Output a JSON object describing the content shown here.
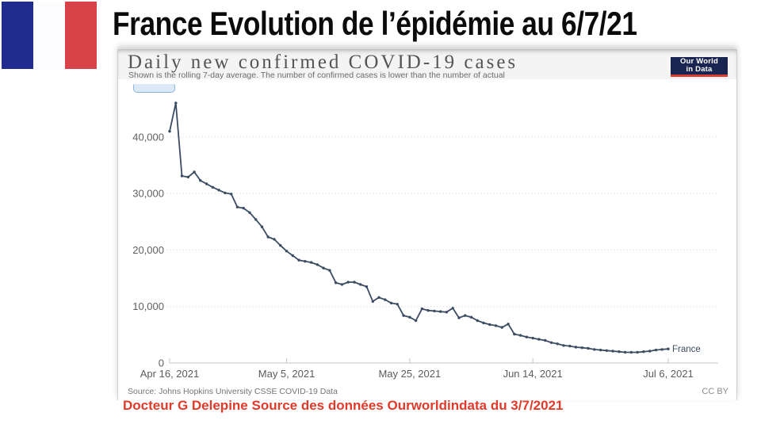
{
  "slide": {
    "title": "France Evolution de l’épidémie au 6/7/21",
    "caption": "Docteur G Delepine  Source des données Ourworldindata du 3/7/2021",
    "flag_colors": {
      "blue": "#202d8e",
      "white": "#fdfdff",
      "red": "#d8434a"
    }
  },
  "chart_embed": {
    "header": {
      "title": "Daily new confirmed COVID-19 cases",
      "subtitle": "Shown is the rolling 7-day average. The number of confirmed cases is lower than the number of actual"
    },
    "logo": {
      "line1": "Our World",
      "line2": "in Data",
      "bg": "#1a2451",
      "accent": "#d93d32"
    },
    "footer": {
      "source": "Source: Johns Hopkins University CSSE COVID-19 Data",
      "license": "CC BY"
    }
  },
  "chart_data": {
    "type": "line",
    "title": "Daily new confirmed COVID-19 cases",
    "subtitle": "Shown is the rolling 7-day average. The number of confirmed cases is lower than the number of actual",
    "grid": "horizontal-dotted",
    "legend": "end-of-line-label",
    "ylim": [
      0,
      47000
    ],
    "x_ticks": [
      {
        "label": "Apr 16, 2021",
        "day": 0
      },
      {
        "label": "May 5, 2021",
        "day": 19
      },
      {
        "label": "May 25, 2021",
        "day": 39
      },
      {
        "label": "Jun 14, 2021",
        "day": 59
      },
      {
        "label": "Jul 6, 2021",
        "day": 81
      }
    ],
    "y_ticks": [
      {
        "label": "0",
        "value": 0
      },
      {
        "label": "10,000",
        "value": 10000
      },
      {
        "label": "20,000",
        "value": 20000
      },
      {
        "label": "30,000",
        "value": 30000
      },
      {
        "label": "40,000",
        "value": 40000
      }
    ],
    "series": [
      {
        "name": "France",
        "color": "#3b4c63",
        "start_date": "2021-04-16",
        "end_date": "2021-07-06",
        "values": [
          41000,
          46000,
          33100,
          32900,
          33800,
          32300,
          31700,
          31100,
          30600,
          30100,
          29900,
          27600,
          27400,
          26600,
          25400,
          24100,
          22300,
          21900,
          20800,
          19800,
          19000,
          18200,
          18000,
          17800,
          17400,
          16800,
          16400,
          14200,
          13900,
          14300,
          14300,
          13900,
          13500,
          10900,
          11600,
          11200,
          10600,
          10400,
          8400,
          8100,
          7500,
          9600,
          9300,
          9200,
          9100,
          9000,
          9700,
          8000,
          8400,
          8100,
          7500,
          7100,
          6800,
          6600,
          6300,
          6900,
          5100,
          4900,
          4600,
          4400,
          4200,
          4000,
          3600,
          3400,
          3100,
          3000,
          2800,
          2700,
          2600,
          2400,
          2300,
          2200,
          2100,
          2000,
          1900,
          1900,
          1900,
          2000,
          2100,
          2300,
          2400,
          2500
        ]
      }
    ]
  }
}
